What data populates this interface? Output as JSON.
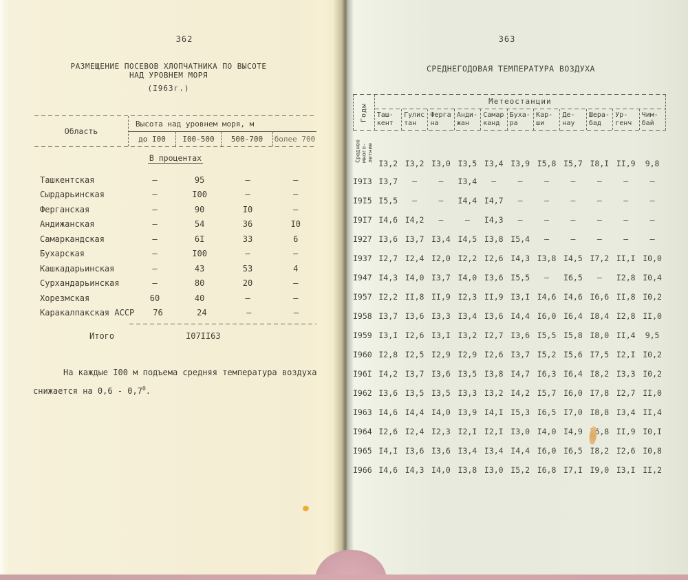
{
  "colors": {
    "left_paper": "#f3edd3",
    "right_paper": "#e8eadd",
    "pink_backing": "#cda3a8",
    "ink": "#413d33"
  },
  "left_page": {
    "page_number": "362",
    "title_line1": "РАЗМЕЩЕНИЕ ПОСЕВОВ ХЛОПЧАТНИКА ПО ВЫСОТЕ",
    "title_line2": "НАД УРОВНЕМ МОРЯ",
    "title_line3": "(I963г.)",
    "table": {
      "col_header_region": "Область",
      "col_header_span": "Высота над уровнем моря, м",
      "sub_headers": [
        "до I00",
        "I00-500",
        "500-700",
        "более 700"
      ],
      "section_label": "В процентах",
      "rows": [
        {
          "region": "Ташкентская",
          "values": [
            "–",
            "95",
            "–",
            "–"
          ]
        },
        {
          "region": "Сырдарьинская",
          "values": [
            "–",
            "I00",
            "–",
            "–"
          ]
        },
        {
          "region": "Ферганская",
          "values": [
            "–",
            "90",
            "I0",
            "–"
          ]
        },
        {
          "region": "Андижанская",
          "values": [
            "–",
            "54",
            "36",
            "I0"
          ]
        },
        {
          "region": "Самаркандская",
          "values": [
            "–",
            "6I",
            "33",
            "6"
          ]
        },
        {
          "region": "Бухарская",
          "values": [
            "–",
            "I00",
            "–",
            "–"
          ]
        },
        {
          "region": "Кашкадарьинская",
          "values": [
            "–",
            "43",
            "53",
            "4"
          ]
        },
        {
          "region": "Сурхандарьинская",
          "values": [
            "–",
            "80",
            "20",
            "–"
          ]
        },
        {
          "region": "Хорезмская",
          "values": [
            "60",
            "40",
            "–",
            "–"
          ]
        },
        {
          "region": "Каракалпакская АССР",
          "values": [
            "76",
            "24",
            "–",
            "–"
          ]
        }
      ],
      "total_label": "Итого",
      "total_values": [
        "I0",
        "7I",
        "I6",
        "3"
      ]
    },
    "footnote": {
      "line1": "На каждые I00 м подъема средняя температура воздуха",
      "line2_prefix": "снижается на 0,6 - 0,7",
      "line2_sup": "0",
      "line2_suffix": "."
    }
  },
  "right_page": {
    "page_number": "363",
    "title": "СРЕДНЕГОДОВАЯ ТЕМПЕРАТУРА ВОЗДУХА",
    "table": {
      "years_label": "Годы",
      "stations_label": "Метеостанции",
      "stations": [
        {
          "line1": "Таш-",
          "line2": "кент"
        },
        {
          "line1": "Гулис",
          "line2": "тан"
        },
        {
          "line1": "Ферга",
          "line2": "на"
        },
        {
          "line1": "Анди-",
          "line2": "жан"
        },
        {
          "line1": "Самар",
          "line2": "канд"
        },
        {
          "line1": "Буха-",
          "line2": "ра"
        },
        {
          "line1": "Кар-",
          "line2": "ши"
        },
        {
          "line1": "Де-",
          "line2": "нау"
        },
        {
          "line1": "Шера-",
          "line2": "бад"
        },
        {
          "line1": "Ур-",
          "line2": "генч"
        },
        {
          "line1": "Чим-",
          "line2": "бай"
        }
      ],
      "average_row": {
        "label_lines": [
          "Среднее",
          "много-",
          "летние"
        ],
        "values": [
          "I3,2",
          "I3,2",
          "I3,0",
          "I3,5",
          "I3,4",
          "I3,9",
          "I5,8",
          "I5,7",
          "I8,I",
          "II,9",
          "9,8"
        ]
      },
      "rows": [
        {
          "year": "I9I3",
          "values": [
            "I3,7",
            "–",
            "–",
            "I3,4",
            "–",
            "–",
            "–",
            "–",
            "–",
            "–",
            "–"
          ]
        },
        {
          "year": "I9I5",
          "values": [
            "I5,5",
            "–",
            "–",
            "I4,4",
            "I4,7",
            "–",
            "–",
            "–",
            "–",
            "–",
            "–"
          ]
        },
        {
          "year": "I9I7",
          "values": [
            "I4,6",
            "I4,2",
            "–",
            "–",
            "I4,3",
            "–",
            "–",
            "–",
            "–",
            "–",
            "–"
          ]
        },
        {
          "year": "I927",
          "values": [
            "I3,6",
            "I3,7",
            "I3,4",
            "I4,5",
            "I3,8",
            "I5,4",
            "–",
            "–",
            "–",
            "–",
            "–"
          ]
        },
        {
          "year": "I937",
          "values": [
            "I2,7",
            "I2,4",
            "I2,0",
            "I2,2",
            "I2,6",
            "I4,3",
            "I3,8",
            "I4,5",
            "I7,2",
            "II,I",
            "I0,0"
          ]
        },
        {
          "year": "I947",
          "values": [
            "I4,3",
            "I4,0",
            "I3,7",
            "I4,0",
            "I3,6",
            "I5,5",
            "–",
            "I6,5",
            "–",
            "I2,8",
            "I0,4"
          ]
        },
        {
          "year": "I957",
          "values": [
            "I2,2",
            "II,8",
            "II,9",
            "I2,3",
            "II,9",
            "I3,I",
            "I4,6",
            "I4,6",
            "I6,6",
            "II,8",
            "I0,2"
          ]
        },
        {
          "year": "I958",
          "values": [
            "I3,7",
            "I3,6",
            "I3,3",
            "I3,4",
            "I3,6",
            "I4,4",
            "I6,0",
            "I6,4",
            "I8,4",
            "I2,8",
            "II,0"
          ]
        },
        {
          "year": "I959",
          "values": [
            "I3,I",
            "I2,6",
            "I3,I",
            "I3,2",
            "I2,7",
            "I3,6",
            "I5,5",
            "I5,8",
            "I8,0",
            "II,4",
            "9,5"
          ]
        },
        {
          "year": "I960",
          "values": [
            "I2,8",
            "I2,5",
            "I2,9",
            "I2,9",
            "I2,6",
            "I3,7",
            "I5,2",
            "I5,6",
            "I7,5",
            "I2,I",
            "I0,2"
          ]
        },
        {
          "year": "I96I",
          "values": [
            "I4,2",
            "I3,7",
            "I3,6",
            "I3,5",
            "I3,8",
            "I4,7",
            "I6,3",
            "I6,4",
            "I8,2",
            "I3,3",
            "I0,2"
          ]
        },
        {
          "year": "I962",
          "values": [
            "I3,6",
            "I3,5",
            "I3,5",
            "I3,3",
            "I3,2",
            "I4,2",
            "I5,7",
            "I6,0",
            "I7,8",
            "I2,7",
            "II,0"
          ]
        },
        {
          "year": "I963",
          "values": [
            "I4,6",
            "I4,4",
            "I4,0",
            "I3,9",
            "I4,I",
            "I5,3",
            "I6,5",
            "I7,0",
            "I8,8",
            "I3,4",
            "II,4"
          ]
        },
        {
          "year": "I964",
          "values": [
            "I2,6",
            "I2,4",
            "I2,3",
            "I2,I",
            "I2,I",
            "I3,0",
            "I4,0",
            "I4,9",
            "I6,8",
            "II,9",
            "I0,I"
          ]
        },
        {
          "year": "I965",
          "values": [
            "I4,I",
            "I3,6",
            "I3,6",
            "I3,4",
            "I3,4",
            "I4,4",
            "I6,0",
            "I6,5",
            "I8,2",
            "I2,6",
            "I0,8"
          ]
        },
        {
          "year": "I966",
          "values": [
            "I4,6",
            "I4,3",
            "I4,0",
            "I3,8",
            "I3,0",
            "I5,2",
            "I6,8",
            "I7,I",
            "I9,0",
            "I3,I",
            "II,2"
          ]
        }
      ]
    }
  }
}
